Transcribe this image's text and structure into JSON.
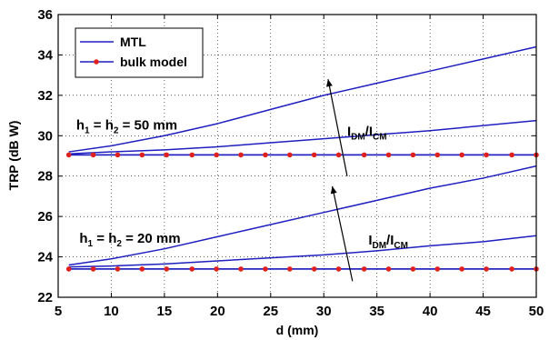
{
  "chart_data": {
    "type": "line",
    "xlabel": "d (mm)",
    "ylabel": "TRP (dB W)",
    "xlim": [
      5,
      50
    ],
    "ylim": [
      22,
      36
    ],
    "xticks": [
      5,
      10,
      15,
      20,
      25,
      30,
      35,
      40,
      45,
      50
    ],
    "yticks": [
      22,
      24,
      26,
      28,
      30,
      32,
      34,
      36
    ],
    "grid": true,
    "legend_position": "top-left",
    "legend": [
      {
        "name": "MTL",
        "color": "#1f1fbf",
        "marker": "none"
      },
      {
        "name": "bulk model",
        "color": "#1f1fbf",
        "marker": "red-dot",
        "marker_color": "#e0201f"
      }
    ],
    "series": [
      {
        "group": "h50",
        "legend_ref": "MTL",
        "x": [
          6,
          10,
          15,
          20,
          25,
          30,
          35,
          40,
          45,
          50
        ],
        "values": [
          29.2,
          29.5,
          30.0,
          30.6,
          31.3,
          32.0,
          32.6,
          33.2,
          33.8,
          34.4
        ]
      },
      {
        "group": "h50",
        "legend_ref": "MTL",
        "x": [
          6,
          10,
          15,
          20,
          25,
          30,
          35,
          40,
          45,
          50
        ],
        "values": [
          29.1,
          29.2,
          29.3,
          29.45,
          29.65,
          29.85,
          30.05,
          30.25,
          30.5,
          30.75
        ]
      },
      {
        "group": "h50",
        "legend_ref": "MTL",
        "x": [
          6,
          50
        ],
        "values": [
          29.05,
          29.05
        ]
      },
      {
        "group": "h50",
        "legend_ref": "bulk model",
        "x": [
          6,
          8.3,
          10.6,
          12.9,
          15.2,
          17.6,
          19.9,
          22.2,
          24.5,
          26.8,
          29.1,
          31.4,
          33.8,
          36.1,
          38.4,
          40.7,
          43.0,
          45.3,
          47.7,
          50.0
        ],
        "values": [
          29.05,
          29.05,
          29.05,
          29.05,
          29.05,
          29.05,
          29.05,
          29.05,
          29.05,
          29.05,
          29.05,
          29.05,
          29.05,
          29.05,
          29.05,
          29.05,
          29.05,
          29.05,
          29.05,
          29.05
        ]
      },
      {
        "group": "h20",
        "legend_ref": "MTL",
        "x": [
          6,
          10,
          15,
          20,
          25,
          30,
          35,
          40,
          45,
          50
        ],
        "values": [
          23.6,
          23.9,
          24.4,
          25.0,
          25.6,
          26.2,
          26.8,
          27.4,
          27.9,
          28.5
        ]
      },
      {
        "group": "h20",
        "legend_ref": "MTL",
        "x": [
          6,
          10,
          15,
          20,
          25,
          30,
          35,
          40,
          45,
          50
        ],
        "values": [
          23.5,
          23.55,
          23.65,
          23.8,
          23.95,
          24.1,
          24.3,
          24.55,
          24.75,
          25.05
        ]
      },
      {
        "group": "h20",
        "legend_ref": "MTL",
        "x": [
          6,
          50
        ],
        "values": [
          23.4,
          23.4
        ]
      },
      {
        "group": "h20",
        "legend_ref": "bulk model",
        "x": [
          6,
          8.3,
          10.6,
          12.9,
          15.2,
          17.6,
          19.9,
          22.2,
          24.5,
          26.8,
          29.1,
          31.4,
          33.8,
          36.1,
          38.4,
          40.7,
          43.0,
          45.3,
          47.7,
          50.0
        ],
        "values": [
          23.4,
          23.4,
          23.4,
          23.4,
          23.4,
          23.4,
          23.4,
          23.4,
          23.4,
          23.4,
          23.4,
          23.4,
          23.4,
          23.4,
          23.4,
          23.4,
          23.4,
          23.4,
          23.4,
          23.4
        ]
      }
    ],
    "annotations": [
      {
        "text": "h1 = h2 = 50 mm",
        "main": "h",
        "sub1": "1",
        "mid": " = h",
        "sub2": "2",
        "tail": " = 50 mm",
        "x": 6.7,
        "y": 30.3
      },
      {
        "text": "h1 = h2 = 20 mm",
        "main": "h",
        "sub1": "1",
        "mid": " = h",
        "sub2": "2",
        "tail": " = 20 mm",
        "x": 7.0,
        "y": 24.7
      },
      {
        "text": "IDM/ICM",
        "a": "I",
        "asub": "DM",
        "b": "/I",
        "bsub": "CM",
        "x": 32.2,
        "y": 30.0
      },
      {
        "text": "IDM/ICM",
        "a": "I",
        "asub": "DM",
        "b": "/I",
        "bsub": "CM",
        "x": 34.2,
        "y": 24.6
      }
    ],
    "arrows": [
      {
        "from": [
          32.2,
          28.0
        ],
        "to": [
          30.4,
          32.8
        ]
      },
      {
        "from": [
          32.7,
          22.8
        ],
        "to": [
          30.8,
          27.5
        ]
      }
    ]
  }
}
